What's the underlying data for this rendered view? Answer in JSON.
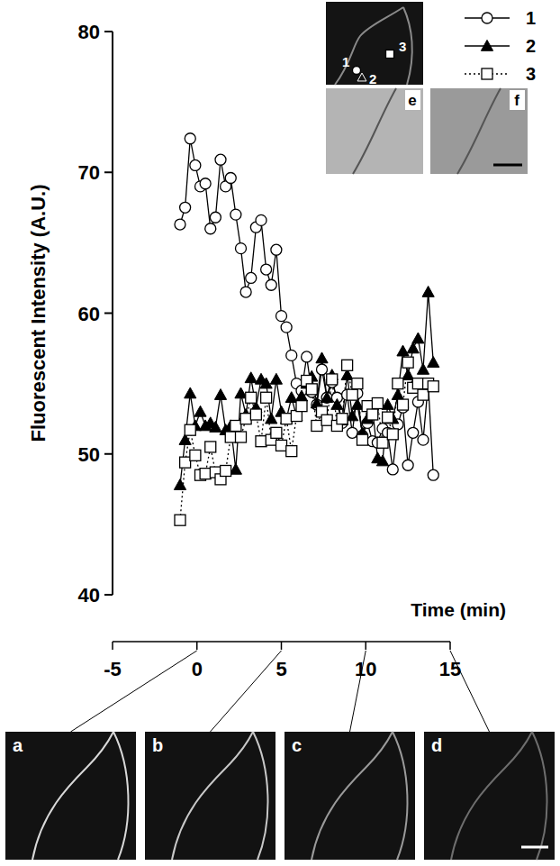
{
  "chart_data": {
    "type": "line",
    "y_label": "Fluorescent Intensity (A.U.)",
    "x_label": "Time (min)",
    "xlim": [
      -5,
      15
    ],
    "xticks": [
      -5,
      0,
      5,
      10,
      15
    ],
    "ylim": [
      40,
      80
    ],
    "yticks": [
      40,
      50,
      60,
      70,
      80
    ],
    "x": [
      -1,
      -0.7,
      -0.4,
      -0.1,
      0.2,
      0.5,
      0.8,
      1.1,
      1.4,
      1.7,
      2,
      2.3,
      2.6,
      2.9,
      3.2,
      3.5,
      3.8,
      4.1,
      4.4,
      4.7,
      5,
      5.3,
      5.6,
      5.9,
      6.2,
      6.5,
      6.8,
      7.1,
      7.4,
      7.7,
      8,
      8.3,
      8.6,
      8.9,
      9.2,
      9.5,
      9.8,
      10.1,
      10.4,
      10.7,
      11,
      11.3,
      11.6,
      11.9,
      12.2,
      12.5,
      12.8,
      13.1,
      13.4,
      13.7,
      14
    ],
    "series": [
      {
        "name": "1",
        "color": "#000000",
        "marker": "circle",
        "line_style": "solid",
        "values": [
          66.3,
          67.5,
          72.4,
          70.5,
          69.0,
          69.2,
          66.0,
          66.8,
          70.9,
          69.0,
          69.6,
          67.0,
          64.6,
          61.5,
          62.5,
          66.1,
          66.6,
          63.1,
          62.0,
          64.5,
          59.8,
          59.0,
          57.0,
          55.0,
          54.5,
          56.9,
          54.4,
          53.5,
          56.0,
          54.0,
          55.1,
          54.0,
          52.2,
          54.2,
          51.5,
          54.3,
          51.3,
          52.2,
          50.9,
          50.8,
          51.8,
          51.5,
          48.9,
          52.1,
          53.3,
          49.2,
          51.5,
          53.7,
          51.0,
          55.0,
          48.5
        ]
      },
      {
        "name": "2",
        "color": "#000000",
        "marker": "triangle",
        "line_style": "solid",
        "values": [
          47.8,
          51.0,
          54.3,
          52.0,
          53.0,
          52.0,
          52.2,
          51.9,
          54.2,
          51.7,
          52.0,
          48.9,
          54.3,
          52.8,
          55.4,
          53.3,
          55.3,
          55.0,
          52.5,
          55.3,
          53.0,
          52.5,
          54.0,
          52.7,
          54.1,
          55.0,
          55.5,
          53.6,
          56.8,
          54.0,
          55.6,
          53.5,
          52.4,
          55.6,
          52.7,
          53.5,
          51.5,
          52.5,
          53.3,
          49.7,
          49.5,
          53.5,
          52.5,
          54.2,
          57.3,
          55.6,
          57.5,
          58.2,
          56.0,
          61.5,
          56.5
        ]
      },
      {
        "name": "3",
        "color": "#000000",
        "marker": "square",
        "line_style": "dotted",
        "values": [
          45.3,
          49.4,
          51.7,
          49.9,
          48.5,
          48.6,
          50.5,
          48.7,
          48.2,
          48.8,
          51.2,
          52.0,
          51.2,
          52.5,
          54.0,
          52.8,
          50.9,
          54.0,
          51.0,
          51.5,
          50.6,
          52.5,
          50.2,
          52.7,
          53.4,
          55.2,
          54.6,
          52.0,
          53.0,
          52.4,
          55.3,
          52.0,
          52.5,
          56.3,
          54.2,
          55.0,
          51.0,
          53.4,
          52.8,
          53.6,
          50.8,
          52.6,
          51.4,
          55.0,
          53.5,
          56.5,
          54.7,
          55.0,
          54.2,
          55.0,
          54.8
        ]
      }
    ],
    "legend": "top-right",
    "panels": [
      {
        "label": "a",
        "x": 0
      },
      {
        "label": "b",
        "x": 5
      },
      {
        "label": "c",
        "x": 10
      },
      {
        "label": "d",
        "x": 15
      }
    ],
    "inset_panels": [
      "e",
      "f"
    ]
  }
}
